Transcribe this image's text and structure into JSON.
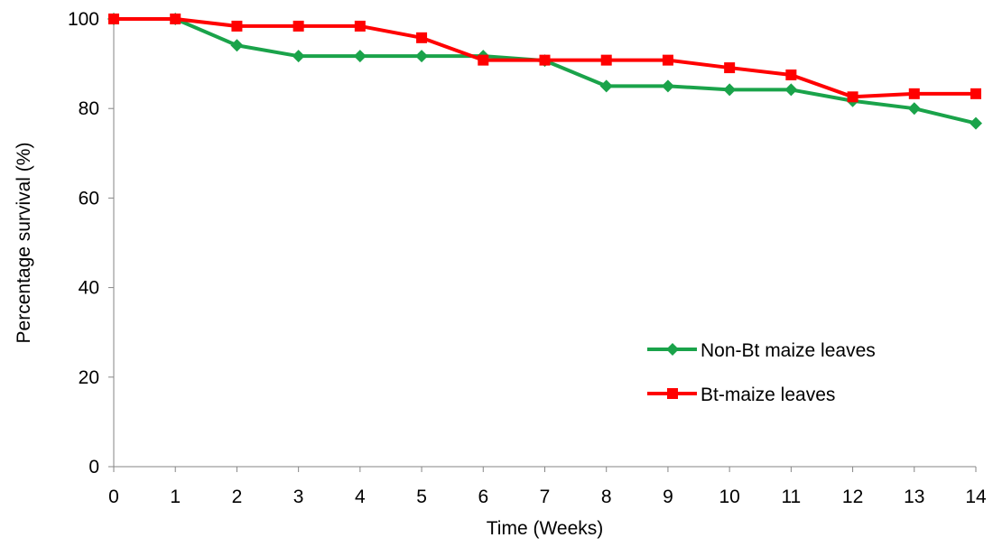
{
  "chart_data": {
    "type": "line",
    "title": "",
    "xlabel": "Time (Weeks)",
    "ylabel": "Percentage survival (%)",
    "x": [
      0,
      1,
      2,
      3,
      4,
      5,
      6,
      7,
      8,
      9,
      10,
      11,
      12,
      13,
      14
    ],
    "xlim": [
      0,
      14
    ],
    "ylim": [
      0,
      100
    ],
    "y_ticks": [
      0,
      20,
      40,
      60,
      80,
      100
    ],
    "grid": false,
    "legend_position": "right",
    "series": [
      {
        "name": "Non-Bt maize leaves",
        "color": "#1aa34a",
        "marker": "diamond",
        "values": [
          100,
          100,
          94.1,
          91.7,
          91.7,
          91.7,
          91.7,
          90.7,
          85.0,
          85.0,
          84.2,
          84.2,
          81.7,
          80.0,
          76.7
        ]
      },
      {
        "name": "Bt-maize leaves",
        "color": "#ff0000",
        "marker": "square",
        "values": [
          100,
          100,
          98.4,
          98.4,
          98.4,
          95.8,
          90.8,
          90.8,
          90.8,
          90.8,
          89.1,
          87.5,
          82.6,
          83.3,
          83.3
        ]
      }
    ]
  }
}
